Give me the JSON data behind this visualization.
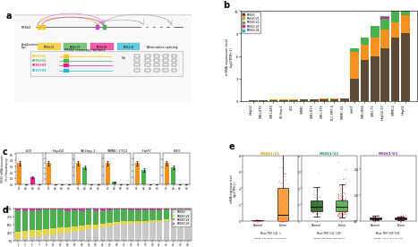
{
  "panel_b": {
    "cell_lines": [
      "HepG2",
      "SMU-475",
      "SMU-449",
      "SK-Hep-1",
      "L02",
      "SMMC",
      "SMU-873",
      "SMU-375",
      "PLC-PRF-5",
      "SMMC-42",
      "HuH7",
      "SMU-886",
      "SMU-71",
      "HepG2-17",
      "SMMC2",
      "HepG1"
    ],
    "PRSS3": [
      0.08,
      0.1,
      0.12,
      0.13,
      0.15,
      0.18,
      0.2,
      0.22,
      0.25,
      0.28,
      3.0,
      5.5,
      6.0,
      7.0,
      8.5,
      9.0
    ],
    "PRSS3_V1": [
      0.04,
      0.04,
      0.04,
      0.05,
      0.05,
      0.05,
      0.06,
      0.06,
      0.06,
      0.07,
      3.5,
      2.0,
      2.5,
      2.5,
      2.0,
      2.5
    ],
    "PRSS3_V2": [
      0.01,
      0.01,
      0.01,
      0.01,
      0.01,
      0.01,
      0.01,
      0.01,
      0.01,
      0.01,
      0.5,
      1.0,
      1.5,
      1.5,
      1.5,
      1.5
    ],
    "PRSS3_V3": [
      0.0,
      0.0,
      0.0,
      0.0,
      0.0,
      0.0,
      0.0,
      0.0,
      0.0,
      0.0,
      0.0,
      0.0,
      0.0,
      0.2,
      0.2,
      0.2
    ],
    "PRSS3_V4": [
      0.0,
      0.0,
      0.0,
      0.0,
      0.0,
      0.0,
      0.0,
      0.0,
      0.0,
      0.0,
      0.0,
      0.0,
      0.0,
      0.1,
      0.1,
      0.1
    ],
    "colors": {
      "PRSS3": "#5c4a37",
      "PRSS3_V1": "#f5921e",
      "PRSS3_V2": "#4caf50",
      "PRSS3_V3": "#e91e8c",
      "PRSS3_V4": "#29b6d5"
    },
    "bar_keys": [
      "PRSS3",
      "PRSS3_V1",
      "PRSS3_V2",
      "PRSS3_V3",
      "PRSS3_V4"
    ],
    "labels": [
      "PRSS3",
      "PRSS3-V1",
      "PRSS3-V2",
      "PRSS3-V3",
      "PRSS3-V4"
    ],
    "ylabel": "mRNA expression level\nlog2(TPM+1)",
    "ylim": [
      0,
      12
    ],
    "yticks": [
      0,
      3,
      6,
      9,
      12
    ]
  },
  "panel_c": {
    "groups": [
      "L02",
      "HepG2",
      "SK-Hep-1",
      "SMMC-7721",
      "HuH7",
      "LM3"
    ],
    "variants": [
      "V1",
      "V2",
      "V3",
      "V4"
    ],
    "colors": {
      "V1": "#f5921e",
      "V2": "#4caf50",
      "V3": "#e91e8c",
      "V4": "#29b6d5"
    },
    "errors": {
      "V1": 0.08,
      "V2": 0.03,
      "V3": 0.02,
      "V4": 0.005
    },
    "data": {
      "L02": {
        "V1": 0.35,
        "V2": 0.0,
        "V3": 0.12,
        "V4": 0.0
      },
      "HepG2": {
        "V1": 0.008,
        "V2": 0.0,
        "V3": 0.0,
        "V4": 0.0
      },
      "SK-Hep-1": {
        "V1": 0.005,
        "V2": 0.004,
        "V3": 0.0,
        "V4": 0.0
      },
      "SMMC-7721": {
        "V1": 0.048,
        "V2": 0.005,
        "V3": 0.0,
        "V4": 0.0
      },
      "HuH7": {
        "V1": 0.032,
        "V2": 0.022,
        "V3": 0.0,
        "V4": 0.0
      },
      "LM3": {
        "V1": 2.5,
        "V2": 2.0,
        "V3": 0.0,
        "V4": 0.0
      }
    },
    "ylabel": "PRSS3 mRNA expression\n(% of housekeeping)"
  },
  "panel_d": {
    "n_samples": 49,
    "x_labels": [
      "1",
      "3",
      "5",
      "7",
      "9",
      "11",
      "13",
      "15",
      "17",
      "19",
      "21",
      "23",
      "25",
      "27",
      "29",
      "31",
      "33",
      "35",
      "37",
      "39",
      "41",
      "43",
      "45",
      "47",
      "49"
    ],
    "colors": {
      "PRSS3": "#c8c8c8",
      "V1": "#e8d44d",
      "V2": "#4caf50",
      "V3": "#cc44aa"
    },
    "legend_labels": [
      "PRSS3",
      "PRSS3-V1",
      "PRSS3-V2",
      "PRSS3-V3"
    ],
    "ytick_labels": [
      "0%",
      "25%",
      "50%",
      "75%",
      "100%"
    ]
  },
  "panel_e": {
    "titles": [
      "PRSS3-V1",
      "PRSS3-V2",
      "PRSS3-V3"
    ],
    "title_colors": [
      "#d4a010",
      "#20a050",
      "#9030b0"
    ],
    "box_colors_normal": [
      "#a07810",
      "#186018",
      "#804090"
    ],
    "box_colors_tumor": [
      "#f5921e",
      "#4caf50",
      "#c060d0"
    ],
    "ylabel": "mRNA expression level\nlog2(TPM+1)",
    "xlabels": [
      "Normal",
      "Tumor"
    ],
    "stats": [
      {
        "mean_normal": "0.41",
        "mean_tumor": "1",
        "range_normal": "0.01-19.09",
        "range_tumor": "0.06-101.23"
      },
      {
        "mean_normal": "2.62",
        "mean_tumor": "1.09",
        "range_normal": "0.88-13.05",
        "range_tumor": "880-789.01"
      },
      {
        "mean_normal": "0.09",
        "mean_tumor": "0.02",
        "range_normal": "1.013-1.9",
        "range_tumor": "0.61-1.23"
      }
    ]
  },
  "bg": "#ffffff"
}
